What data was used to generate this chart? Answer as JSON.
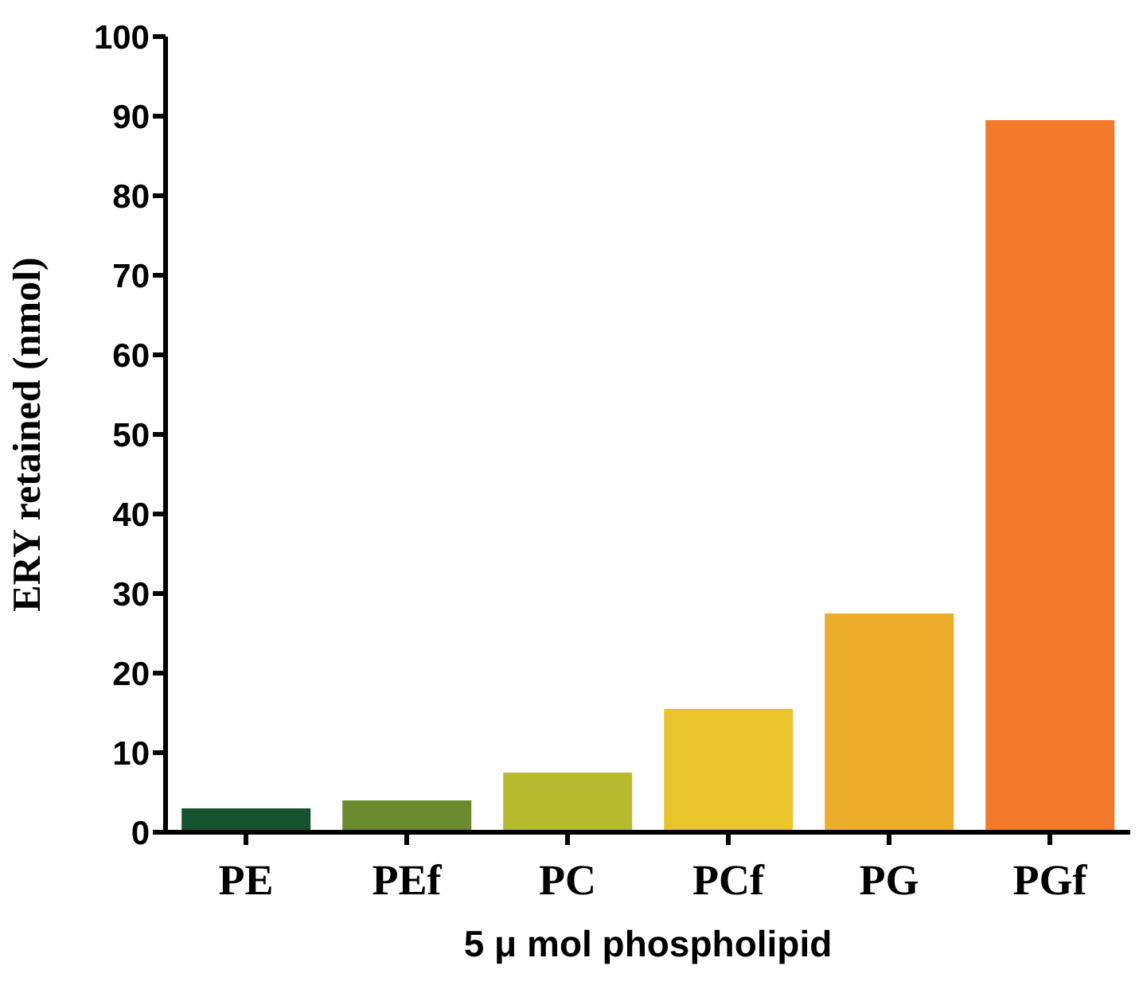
{
  "chart_data": {
    "type": "bar",
    "xlabel": "5 μ mol phospholipid",
    "ylabel": "ERY retained (nmol)",
    "categories": [
      "PE",
      "PEf",
      "PC",
      "PCf",
      "PG",
      "PGf"
    ],
    "values": [
      3.0,
      4.0,
      7.5,
      15.5,
      27.5,
      89.5
    ],
    "colors": [
      "#14532d",
      "#6a8a2e",
      "#b7b92e",
      "#e9c42b",
      "#ecac2c",
      "#f47a2b"
    ],
    "ylim": [
      0,
      100
    ],
    "yticks": [
      0,
      10,
      20,
      30,
      40,
      50,
      60,
      70,
      80,
      90,
      100
    ],
    "grid": false,
    "legend": false
  }
}
